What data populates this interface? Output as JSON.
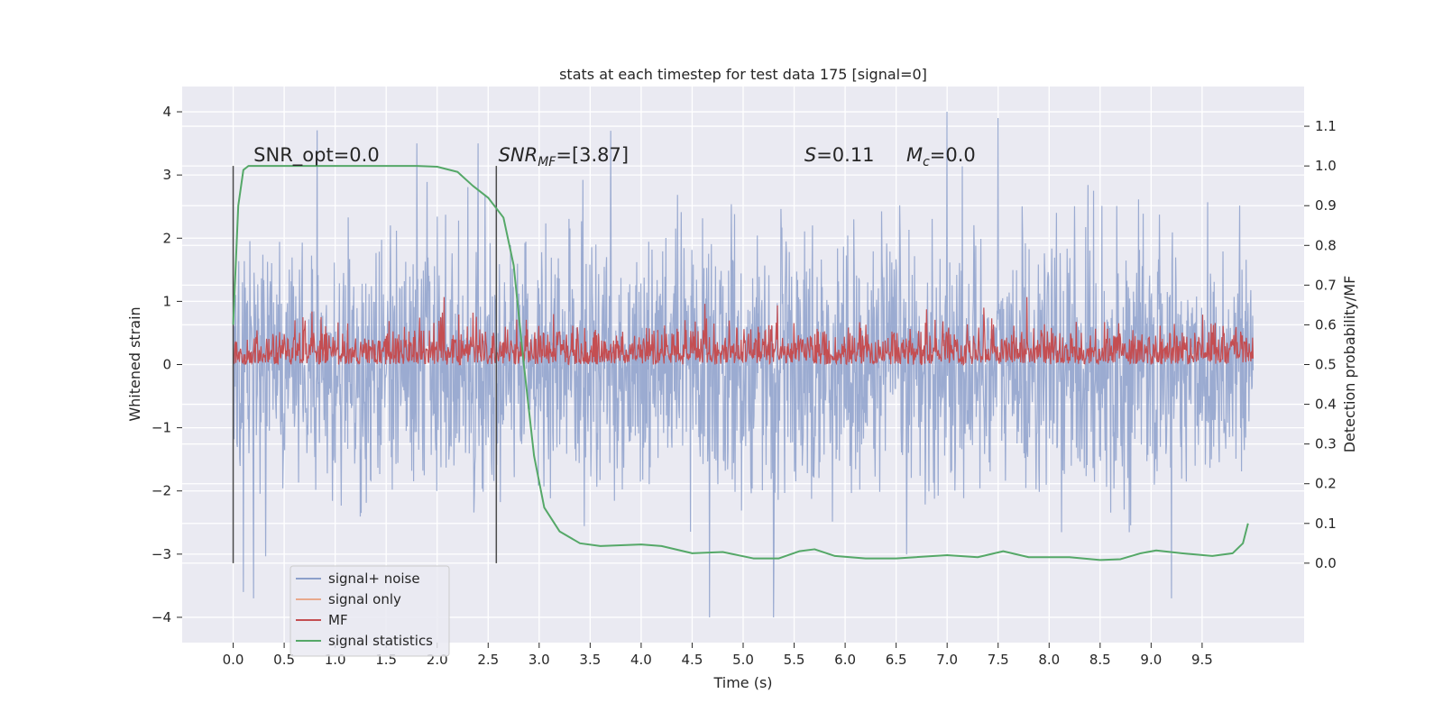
{
  "chart_data": {
    "type": "line",
    "title": "stats at each timestep for test data 175 [signal=0]",
    "xlabel": "Time (s)",
    "ylabel": "Whitened strain",
    "y2label": "Detection probability/MF",
    "xlim": [
      -0.5,
      10.5
    ],
    "ylim": [
      -4.4,
      4.4
    ],
    "y2lim": [
      -0.2,
      1.2
    ],
    "xticks": [
      0.0,
      0.5,
      1.0,
      1.5,
      2.0,
      2.5,
      3.0,
      3.5,
      4.0,
      4.5,
      5.0,
      5.5,
      6.0,
      6.5,
      7.0,
      7.5,
      8.0,
      8.5,
      9.0,
      9.5
    ],
    "xtick_labels": [
      "0.0",
      "0.5",
      "1.0",
      "1.5",
      "2.0",
      "2.5",
      "3.0",
      "3.5",
      "4.0",
      "4.5",
      "5.0",
      "5.5",
      "6.0",
      "6.5",
      "7.0",
      "7.5",
      "8.0",
      "8.5",
      "9.0",
      "9.5"
    ],
    "yticks": [
      -4,
      -3,
      -2,
      -1,
      0,
      1,
      2,
      3,
      4
    ],
    "ytick_labels": [
      "−4",
      "−3",
      "−2",
      "−1",
      "0",
      "1",
      "2",
      "3",
      "4"
    ],
    "y2ticks": [
      0.0,
      0.1,
      0.2,
      0.3,
      0.4,
      0.5,
      0.6,
      0.7,
      0.8,
      0.9,
      1.0,
      1.1
    ],
    "y2tick_labels": [
      "0.0",
      "0.1",
      "0.2",
      "0.3",
      "0.4",
      "0.5",
      "0.6",
      "0.7",
      "0.8",
      "0.9",
      "1.0",
      "1.1"
    ],
    "grid": true,
    "legend_position": "lower-left",
    "series": [
      {
        "name": "signal+ noise",
        "color": "#8da0cb",
        "axis": "left",
        "description": "noise-like strain, roughly symmetric about 0 with envelope about ±2.5 and peaks to about ±4",
        "x_range": [
          0.0,
          10.0
        ],
        "notable_values": [
          {
            "x": 0.1,
            "y": -3.6
          },
          {
            "x": 0.2,
            "y": -3.7
          },
          {
            "x": 1.8,
            "y": 3.5
          },
          {
            "x": 2.4,
            "y": 3.5
          },
          {
            "x": 3.7,
            "y": 3.7
          },
          {
            "x": 5.3,
            "y": -4.0
          },
          {
            "x": 7.0,
            "y": 4.0
          },
          {
            "x": 7.5,
            "y": 3.9
          },
          {
            "x": 9.2,
            "y": -3.7
          }
        ]
      },
      {
        "name": "signal only",
        "color": "#e8a98c",
        "axis": "left",
        "values": "zero (no signal injected)"
      },
      {
        "name": "MF",
        "color": "#c44e52",
        "axis": "right",
        "description": "noisy band between about 0.5 and 0.63 on the right axis",
        "x_range": [
          0.0,
          10.0
        ],
        "band": [
          0.5,
          0.63
        ],
        "peak": 0.67
      },
      {
        "name": "signal statistics",
        "color": "#55a868",
        "axis": "right",
        "x": [
          0.0,
          0.05,
          0.1,
          0.15,
          0.3,
          1.0,
          1.8,
          2.0,
          2.2,
          2.35,
          2.5,
          2.65,
          2.75,
          2.85,
          2.95,
          3.05,
          3.2,
          3.4,
          3.6,
          3.8,
          4.0,
          4.2,
          4.5,
          4.8,
          5.1,
          5.35,
          5.55,
          5.7,
          5.9,
          6.2,
          6.5,
          7.0,
          7.3,
          7.55,
          7.8,
          8.2,
          8.5,
          8.7,
          8.9,
          9.05,
          9.3,
          9.6,
          9.8,
          9.9,
          9.95
        ],
        "y": [
          0.6,
          0.9,
          0.99,
          1.0,
          1.0,
          1.0,
          1.0,
          0.998,
          0.985,
          0.95,
          0.92,
          0.87,
          0.75,
          0.5,
          0.27,
          0.14,
          0.08,
          0.05,
          0.043,
          0.045,
          0.047,
          0.043,
          0.025,
          0.028,
          0.012,
          0.012,
          0.03,
          0.035,
          0.018,
          0.012,
          0.012,
          0.02,
          0.015,
          0.03,
          0.015,
          0.015,
          0.008,
          0.01,
          0.025,
          0.032,
          0.025,
          0.018,
          0.025,
          0.05,
          0.1
        ]
      }
    ],
    "annotations": [
      {
        "label": "SNR_opt=0.0",
        "x": 0.2,
        "y": 3.2
      },
      {
        "label": "SNR",
        "sub": "MF",
        "suffix": "=[3.87]",
        "x": 2.6,
        "y": 3.2
      },
      {
        "label": "S",
        "suffix": "=0.11",
        "x": 5.6,
        "y": 3.2
      },
      {
        "label": "M",
        "sub": "c",
        "suffix": "=0.0",
        "x": 6.6,
        "y": 3.2
      }
    ],
    "vertical_lines": [
      0.0,
      2.58
    ]
  }
}
